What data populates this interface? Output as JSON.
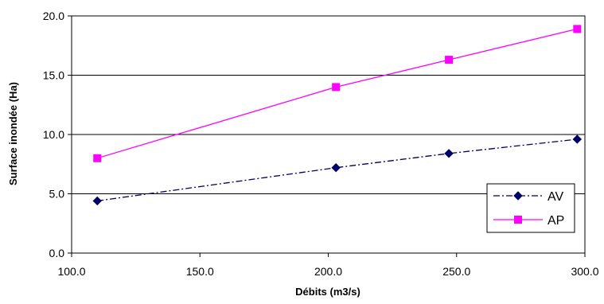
{
  "chart_data": {
    "type": "line",
    "title": "",
    "xlabel": "Débits (m3/s)",
    "ylabel": "Surface inondée (Ha)",
    "xlim": [
      100,
      300
    ],
    "ylim": [
      0,
      20
    ],
    "x_ticks": [
      "100.0",
      "150.0",
      "200.0",
      "250.0",
      "300.0"
    ],
    "y_ticks": [
      "0.0",
      "5.0",
      "10.0",
      "15.0",
      "20.0"
    ],
    "grid": "horizontal",
    "legend_position": "bottom-right",
    "series": [
      {
        "name": "AV",
        "color": "#000066",
        "line_style": "dash-dot",
        "marker": "diamond",
        "x": [
          110,
          203,
          247,
          297
        ],
        "y": [
          4.4,
          7.2,
          8.4,
          9.6
        ]
      },
      {
        "name": "AP",
        "color": "#ff00ff",
        "line_style": "solid",
        "marker": "square",
        "x": [
          110,
          203,
          247,
          297
        ],
        "y": [
          8.0,
          14.0,
          16.3,
          18.9
        ]
      }
    ]
  }
}
